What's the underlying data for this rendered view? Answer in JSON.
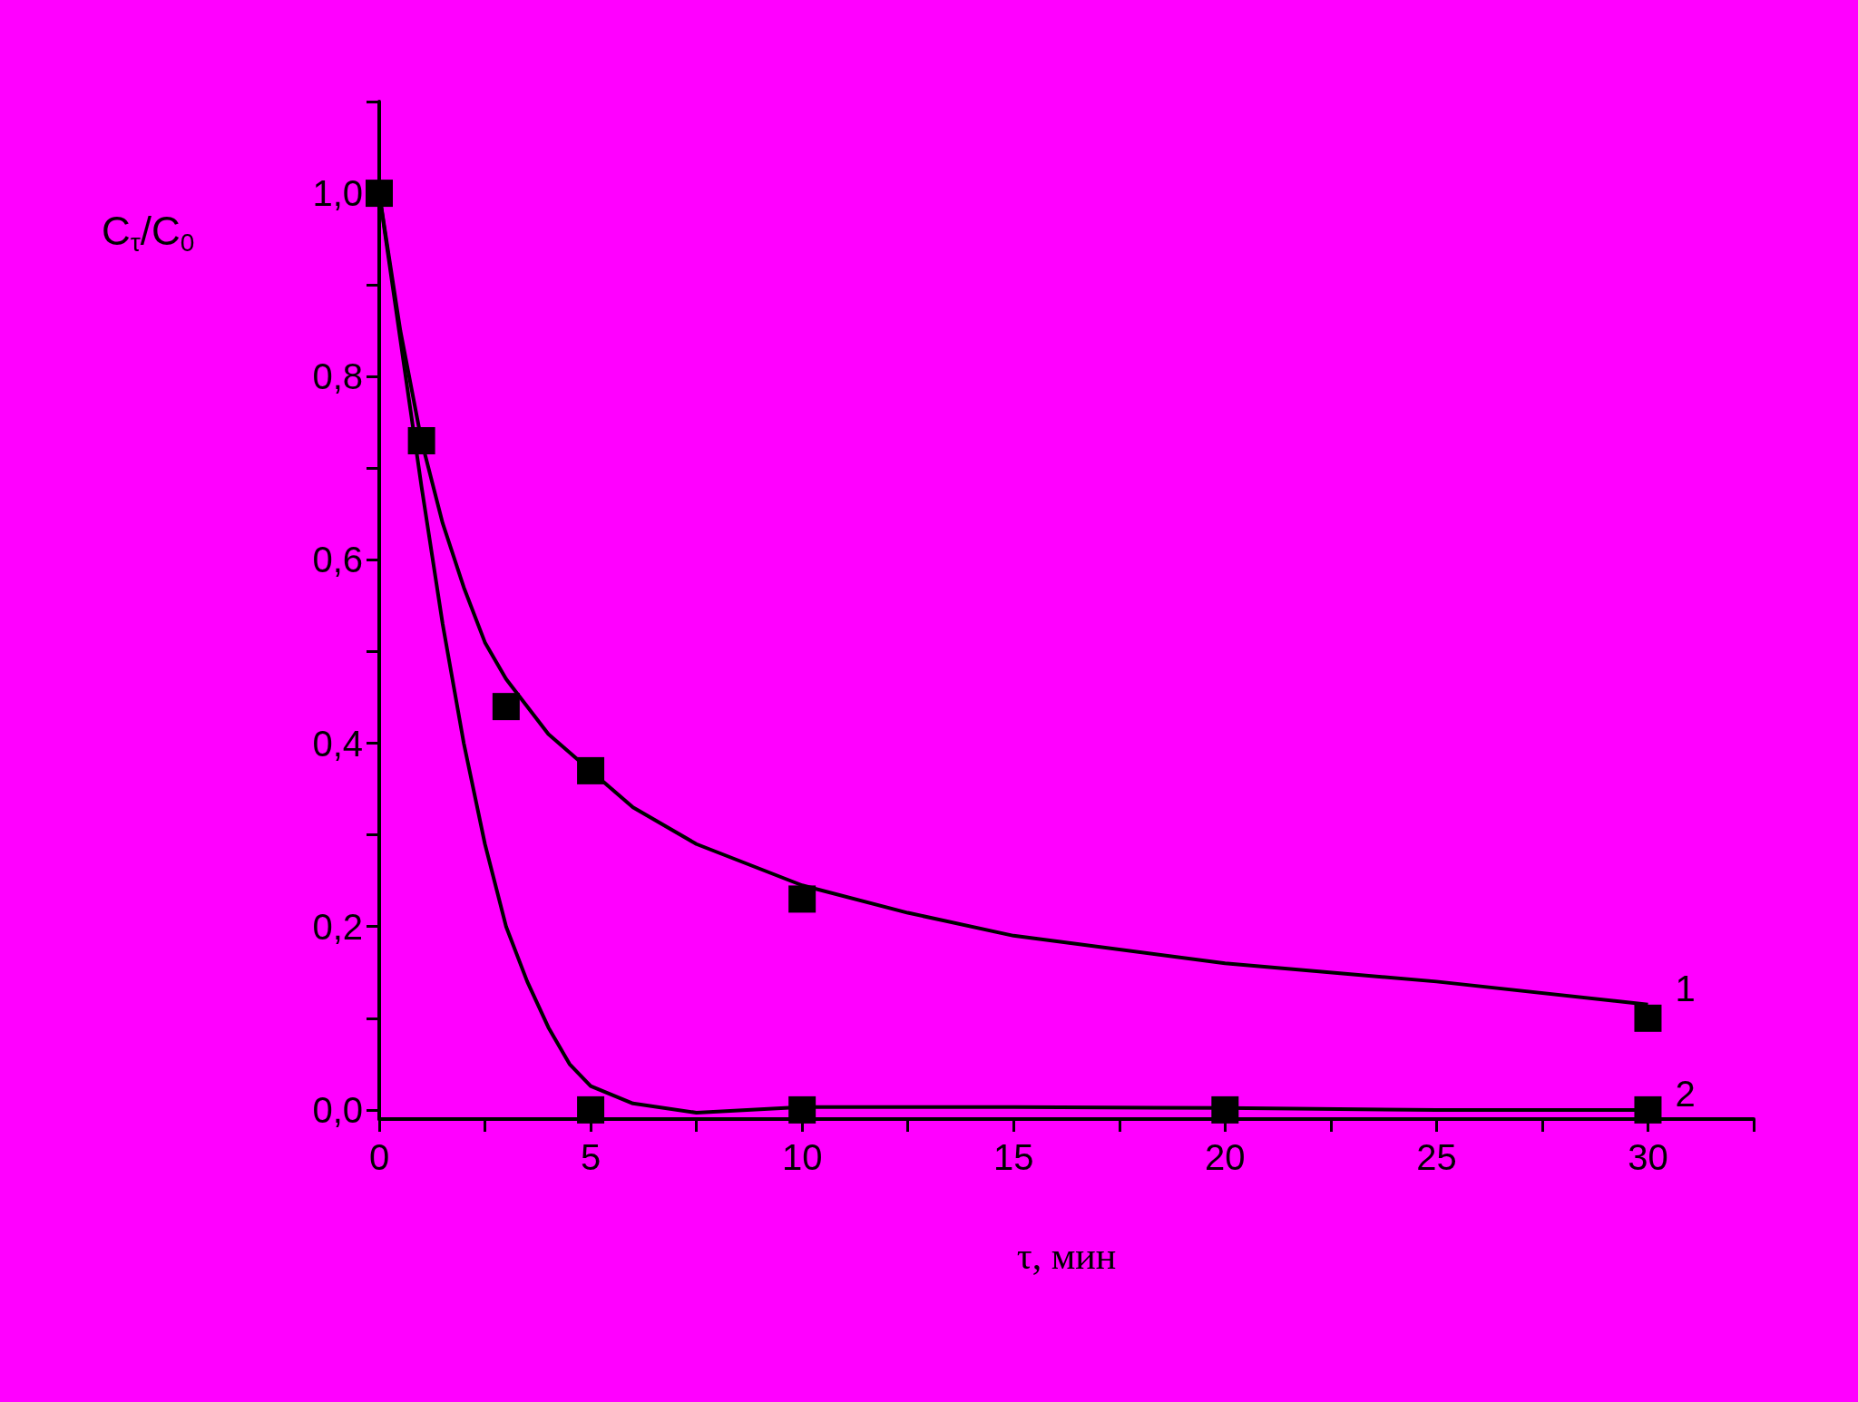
{
  "chart_data": {
    "type": "scatter",
    "xlabel": "τ, мин",
    "ylabel": "C$_{τ}$/C$_{0}$",
    "xlim": [
      0,
      32.5
    ],
    "ylim": [
      -0.01,
      1.1
    ],
    "xticks": [
      0,
      {
        "value": 2.5,
        "label": null
      },
      5,
      {
        "value": 7.5,
        "label": null
      },
      10,
      {
        "value": 12.5,
        "label": null
      },
      15,
      {
        "value": 17.5,
        "label": null
      },
      20,
      {
        "value": 22.5,
        "label": null
      },
      25,
      {
        "value": 27.5,
        "label": null
      },
      30,
      {
        "value": 32.5,
        "label": null
      }
    ],
    "yticks": [
      {
        "value": 0,
        "label": "0,0"
      },
      {
        "value": 0.1,
        "label": null
      },
      {
        "value": 0.2,
        "label": "0,2"
      },
      {
        "value": 0.3,
        "label": null
      },
      {
        "value": 0.4,
        "label": "0,4"
      },
      {
        "value": 0.5,
        "label": null
      },
      {
        "value": 0.6,
        "label": "0,6"
      },
      {
        "value": 0.7,
        "label": null
      },
      {
        "value": 0.8,
        "label": "0,8"
      },
      {
        "value": 0.9,
        "label": null
      },
      {
        "value": 1.0,
        "label": "1,0"
      },
      {
        "value": 1.1,
        "label": null
      }
    ],
    "grid": false,
    "legend": false,
    "marker": "square",
    "series": [
      {
        "color": "#000000",
        "x": [
          0,
          1,
          3,
          5,
          10,
          30
        ],
        "values": [
          1.0,
          0.73,
          0.44,
          0.37,
          0.23,
          0.1
        ]
      },
      {
        "color": "#000000",
        "x": [
          5,
          10,
          20,
          30
        ],
        "values": [
          0.0,
          0.0,
          0.0,
          0.0
        ]
      },
      {
        "type": "line",
        "name": "1",
        "color": "#000000",
        "marker": "none",
        "x": [
          0,
          0.5,
          1,
          1.5,
          2,
          2.5,
          3,
          4,
          5,
          6,
          7.5,
          10,
          12.5,
          15,
          20,
          25,
          30
        ],
        "values": [
          1.0,
          0.85,
          0.73,
          0.64,
          0.57,
          0.51,
          0.47,
          0.41,
          0.37,
          0.33,
          0.29,
          0.245,
          0.215,
          0.19,
          0.16,
          0.14,
          0.115
        ]
      },
      {
        "type": "line",
        "name": "2",
        "color": "#000000",
        "marker": "none",
        "x": [
          0,
          0.5,
          1,
          1.5,
          2,
          2.5,
          3,
          3.5,
          4,
          4.5,
          5,
          6,
          7.5,
          10,
          15,
          20,
          25,
          30
        ],
        "values": [
          1.0,
          0.84,
          0.68,
          0.53,
          0.4,
          0.29,
          0.2,
          0.14,
          0.09,
          0.05,
          0.026,
          0.007,
          -0.003,
          0.003,
          0.003,
          0.002,
          0.0,
          0.0
        ]
      }
    ]
  }
}
